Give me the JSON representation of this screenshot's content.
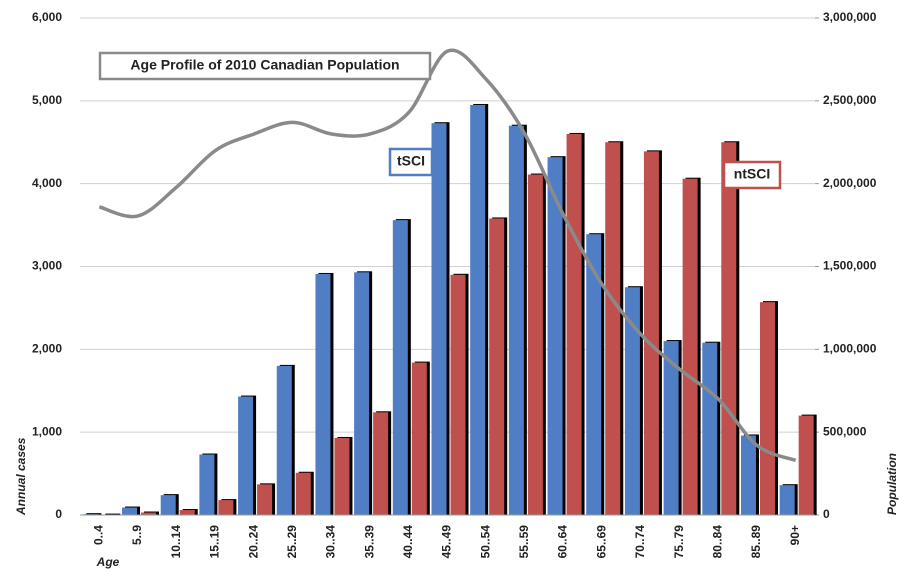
{
  "chart_data": {
    "type": "bar",
    "categories": [
      "0..4",
      "5..9",
      "10..14",
      "15..19",
      "20..24",
      "25..29",
      "30..34",
      "35..39",
      "40..44",
      "45..49",
      "50..54",
      "55..59",
      "60..64",
      "65..69",
      "70..74",
      "75..79",
      "80..84",
      "85..89",
      "90+"
    ],
    "series": [
      {
        "name": "tSCI",
        "color": "#4f7ec5",
        "values": [
          10,
          90,
          240,
          730,
          1430,
          1800,
          2910,
          2930,
          3560,
          4730,
          4950,
          4700,
          4320,
          3390,
          2750,
          2100,
          2080,
          960,
          360
        ]
      },
      {
        "name": "ntSCI",
        "color": "#c0504d",
        "values": [
          5,
          30,
          60,
          180,
          370,
          510,
          930,
          1240,
          1840,
          2900,
          3580,
          4110,
          4600,
          4500,
          4390,
          4060,
          4500,
          2570,
          1200
        ]
      },
      {
        "name": "Age Profile of 2010 Canadian Population",
        "color": "#8a8a8a",
        "type": "line",
        "axis": "y2",
        "values": [
          1860000,
          1805000,
          1980000,
          2200000,
          2300000,
          2370000,
          2300000,
          2300000,
          2430000,
          2800000,
          2630000,
          2300000,
          1810000,
          1390000,
          1090000,
          880000,
          700000,
          420000,
          330000
        ]
      }
    ],
    "x_label": "Age",
    "y_label": "Annual cases",
    "y2_label": "Population",
    "ylim": [
      0,
      6000
    ],
    "yticks": [
      0,
      {
        "value": 1000,
        "label": "1,000"
      },
      {
        "value": 2000,
        "label": "2,000"
      },
      {
        "value": 3000,
        "label": "3,000"
      },
      {
        "value": 4000,
        "label": "4,000"
      },
      {
        "value": 5000,
        "label": "5,000"
      },
      {
        "value": 6000,
        "label": "6,000"
      }
    ],
    "y2lim": [
      0,
      3000000
    ],
    "y2ticks": [
      0,
      {
        "value": 500000,
        "label": "500,000"
      },
      {
        "value": 1000000,
        "label": "1,000,000"
      },
      {
        "value": 1500000,
        "label": "1,500,000"
      },
      {
        "value": 2000000,
        "label": "2,000,000"
      },
      {
        "value": 2500000,
        "label": "2,500,000"
      },
      {
        "value": 3000000,
        "label": "3,000,000"
      }
    ],
    "grid": true
  }
}
